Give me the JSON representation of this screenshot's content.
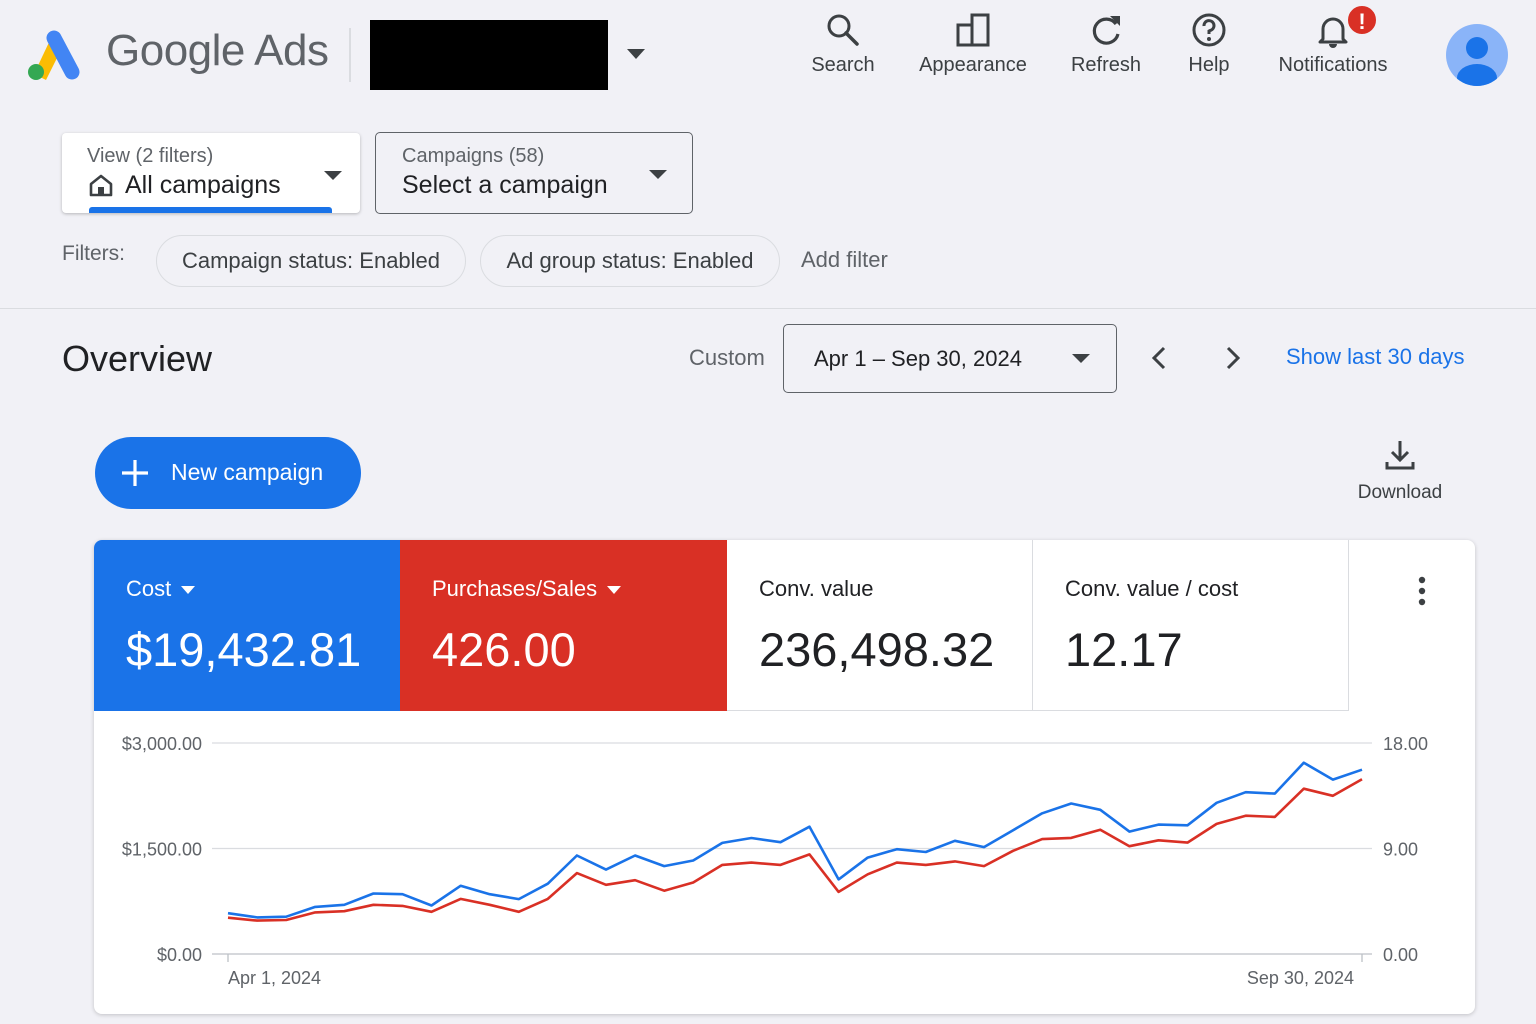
{
  "header": {
    "brand": "Google Ads",
    "tools": [
      {
        "label": "Search",
        "icon": "search-icon"
      },
      {
        "label": "Appearance",
        "icon": "appearance-icon"
      },
      {
        "label": "Refresh",
        "icon": "refresh-icon"
      },
      {
        "label": "Help",
        "icon": "help-icon"
      },
      {
        "label": "Notifications",
        "icon": "bell-icon",
        "badge": "!"
      }
    ]
  },
  "view_selector": {
    "sub": "View (2 filters)",
    "main": "All campaigns"
  },
  "campaign_selector": {
    "sub": "Campaigns (58)",
    "main": "Select a campaign"
  },
  "filters": {
    "label": "Filters:",
    "chips": [
      "Campaign status: Enabled",
      "Ad group status: Enabled"
    ],
    "add": "Add filter"
  },
  "overview": {
    "title": "Overview",
    "range_type": "Custom",
    "date_range": "Apr 1 – Sep 30, 2024",
    "show_last": "Show last 30 days"
  },
  "actions": {
    "new_campaign": "New campaign",
    "download": "Download"
  },
  "metrics": [
    {
      "label": "Cost",
      "value": "$19,432.81",
      "color": "#1a73e8",
      "dropdown": true
    },
    {
      "label": "Purchases/Sales",
      "value": "426.00",
      "color": "#d93025",
      "dropdown": true
    },
    {
      "label": "Conv. value",
      "value": "236,498.32"
    },
    {
      "label": "Conv. value / cost",
      "value": "12.17"
    }
  ],
  "colors": {
    "accent": "#1a73e8",
    "red": "#d93025"
  },
  "chart_data": {
    "type": "line",
    "left_axis": {
      "ticks": [
        "$3,000.00",
        "$1,500.00",
        "$0.00"
      ],
      "ylim": [
        0,
        3000
      ]
    },
    "right_axis": {
      "ticks": [
        "18.00",
        "9.00",
        "0.00"
      ],
      "ylim": [
        0,
        18
      ]
    },
    "x_labels": [
      "Apr 1, 2024",
      "Sep 30, 2024"
    ],
    "series": [
      {
        "name": "Cost",
        "axis": "left",
        "color": "#1a73e8",
        "values": [
          580,
          520,
          530,
          670,
          700,
          860,
          850,
          690,
          970,
          850,
          780,
          1000,
          1400,
          1200,
          1400,
          1250,
          1330,
          1580,
          1650,
          1590,
          1810,
          1060,
          1370,
          1490,
          1450,
          1610,
          1520,
          1760,
          2000,
          2140,
          2050,
          1740,
          1840,
          1830,
          2150,
          2300,
          2280,
          2720,
          2480,
          2620
        ]
      },
      {
        "name": "Purchases/Sales",
        "axis": "right",
        "color": "#d93025",
        "values": [
          3.1,
          2.85,
          2.9,
          3.55,
          3.65,
          4.2,
          4.1,
          3.6,
          4.7,
          4.2,
          3.6,
          4.7,
          6.9,
          5.9,
          6.3,
          5.4,
          6.1,
          7.6,
          7.8,
          7.6,
          8.5,
          5.3,
          6.8,
          7.8,
          7.6,
          7.9,
          7.5,
          8.8,
          9.8,
          9.9,
          10.6,
          9.2,
          9.7,
          9.5,
          11.1,
          11.8,
          11.7,
          14.1,
          13.5,
          14.9
        ]
      }
    ]
  }
}
